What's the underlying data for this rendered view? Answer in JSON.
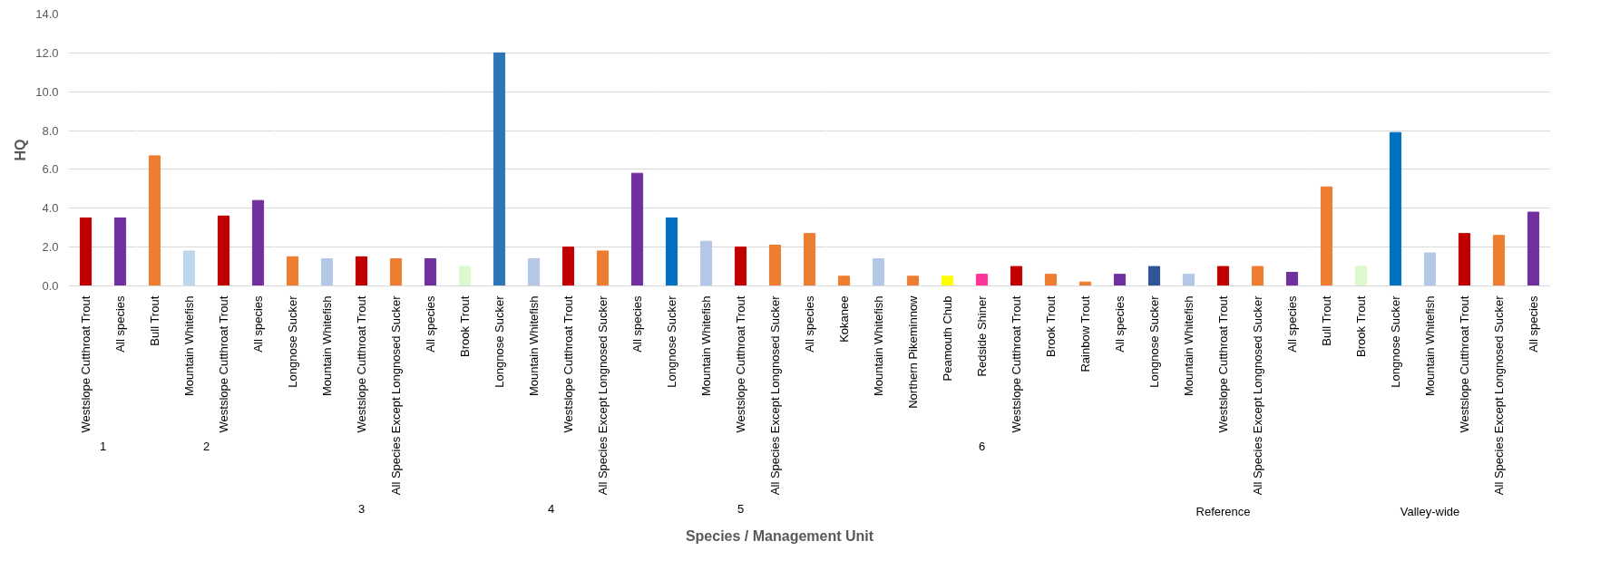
{
  "chart_data": [
    {
      "type": "bar",
      "title": "1",
      "ylabel": "HQ",
      "categories": [
        "Westslope Cutthroat Trout",
        "All species"
      ],
      "values": [
        3.5,
        3.5
      ],
      "colors": [
        "#c00000",
        "#7030a0"
      ],
      "ylim": [
        0,
        14
      ],
      "yticks": [
        {
          "value": 0,
          "label": "0.0"
        },
        {
          "value": 2,
          "label": "2.0"
        },
        {
          "value": 4,
          "label": "4.0"
        },
        {
          "value": 6,
          "label": "6.0"
        },
        {
          "value": 8,
          "label": "8.0"
        },
        {
          "value": 10,
          "label": "10.0"
        },
        {
          "value": 12,
          "label": "12.0"
        },
        {
          "value": 14,
          "label": "14.0"
        }
      ],
      "grid": "y"
    },
    {
      "type": "bar",
      "title": "2",
      "categories": [
        "Bull Trout",
        "Mountain Whitefish",
        "Westslope Cutthroat Trout",
        "All species"
      ],
      "values": [
        6.7,
        1.8,
        3.6,
        4.4
      ],
      "colors": [
        "#ed7d31",
        "#bdd7ee",
        "#c00000",
        "#7030a0"
      ],
      "ylim": [
        0,
        14
      ],
      "grid": "y",
      "tick_labels": "x"
    },
    {
      "type": "bar",
      "title": "3",
      "categories": [
        "Longnose Sucker",
        "Mountain Whitefish",
        "Westslope Cutthroat Trout",
        "All Species Except Longnosed Sucker",
        "All species"
      ],
      "values": [
        1.5,
        1.4,
        1.5,
        1.4,
        1.4
      ],
      "colors": [
        "#ed7d31",
        "#b4c7e7",
        "#c00000",
        "#ed7d31",
        "#7030a0"
      ],
      "ylim": [
        0,
        14
      ],
      "grid": "y",
      "tick_labels": "x"
    },
    {
      "type": "bar",
      "title": "4",
      "categories": [
        "Brook Trout",
        "Longnose Sucker",
        "Mountain Whitefish",
        "Westslope Cutthroat Trout",
        "All Species Except Longnosed Sucker",
        "All species"
      ],
      "values": [
        1.0,
        12.0,
        1.4,
        2.0,
        1.8,
        5.8
      ],
      "colors": [
        "#ddf8cc",
        "#2e75b6",
        "#b4c7e7",
        "#c00000",
        "#ed7d31",
        "#7030a0"
      ],
      "ylim": [
        0,
        14
      ],
      "grid": "y",
      "tick_labels": "x",
      "annotations": [
        "Species / Management Unit"
      ]
    },
    {
      "type": "bar",
      "title": "5",
      "categories": [
        "Longnose Sucker",
        "Mountain Whitefish",
        "Westslope Cutthroat Trout",
        "All Species Except Longnosed Sucker",
        "All species"
      ],
      "values": [
        3.5,
        2.3,
        2.0,
        2.1,
        2.7
      ],
      "colors": [
        "#0070c0",
        "#b4c7e7",
        "#c00000",
        "#ed7d31",
        "#ed7d31"
      ],
      "ylim": [
        0,
        14
      ],
      "grid": "y",
      "tick_labels": "x"
    },
    {
      "type": "bar",
      "title": "6",
      "categories": [
        "Kokanee",
        "Mountain Whitefish",
        "Northern Pikeminnow",
        "Peamouth Chub",
        "Redside Shiner",
        "Westslope Cutthroat Trout",
        "Brook Trout",
        "Rainbow Trout",
        "All species"
      ],
      "values": [
        0.5,
        1.4,
        0.5,
        0.5,
        0.6,
        1.0,
        0.6,
        0.2,
        0.6
      ],
      "colors": [
        "#ed7d31",
        "#b4c7e7",
        "#ed7d31",
        "#ffff00",
        "#ff3399",
        "#c00000",
        "#ed7d31",
        "#ed7d31",
        "#7030a0"
      ],
      "ylim": [
        0,
        14
      ],
      "grid": "y",
      "tick_labels": "x"
    },
    {
      "type": "bar",
      "title": "Reference",
      "categories": [
        "Longnose Sucker",
        "Mountain Whitefish",
        "Westslope Cutthroat Trout",
        "All Species Except Longnosed Sucker",
        "All species"
      ],
      "values": [
        1.0,
        0.6,
        1.0,
        1.0,
        0.7
      ],
      "colors": [
        "#2f5597",
        "#b4c7e7",
        "#c00000",
        "#ed7d31",
        "#7030a0"
      ],
      "ylim": [
        0,
        14
      ],
      "grid": "y",
      "tick_labels": "x"
    },
    {
      "type": "bar",
      "title": "Valley-wide",
      "categories": [
        "Bull Trout",
        "Brook Trout",
        "Longnose Sucker",
        "Mountain Whitefish",
        "Westslope Cutthroat Trout",
        "All Species Except Longnosed Sucker",
        "All species"
      ],
      "values": [
        5.1,
        1.0,
        7.9,
        1.7,
        2.7,
        2.6,
        3.8
      ],
      "colors": [
        "#ed7d31",
        "#ddf8cc",
        "#0070c0",
        "#b4c7e7",
        "#c00000",
        "#ed7d31",
        "#7030a0"
      ],
      "ylim": [
        0,
        14
      ],
      "grid": "y",
      "tick_labels": "x"
    }
  ]
}
